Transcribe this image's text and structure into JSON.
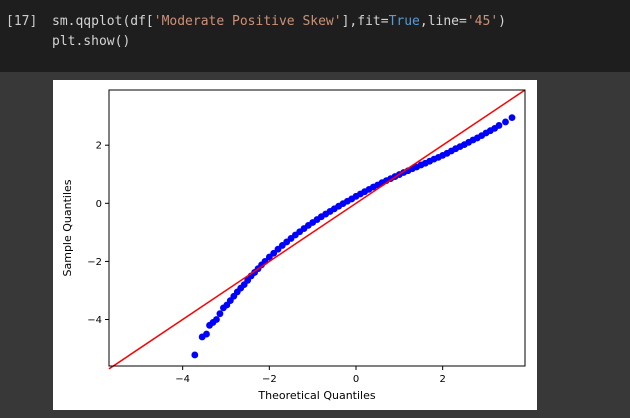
{
  "cell": {
    "prompt": "[17]",
    "code_line1_parts": [
      "sm.qqplot(df[",
      "'Moderate Positive Skew'",
      "],fit=",
      "True",
      ",line=",
      "'45'",
      ")"
    ],
    "code_line2": "plt.show()"
  },
  "colors": {
    "code_bg": "#1e1e1e",
    "output_bg": "#383838",
    "string": "#ce9178",
    "keyword": "#569cd6",
    "points": "#0000ff",
    "reference_line": "#ff0000"
  },
  "chart_data": {
    "type": "scatter",
    "title": "",
    "xlabel": "Theoretical Quantiles",
    "ylabel": "Sample Quantiles",
    "xlim": [
      -5.7,
      3.9
    ],
    "ylim": [
      -5.6,
      3.9
    ],
    "xticks": [
      -4,
      -2,
      0,
      2
    ],
    "yticks": [
      -4,
      -2,
      0,
      2
    ],
    "xtick_labels": [
      "−4",
      "−2",
      "0",
      "2"
    ],
    "ytick_labels": [
      "−4",
      "−2",
      "0",
      "2"
    ],
    "grid": false,
    "legend": "none",
    "reference_line": {
      "type": "45-degree",
      "points": [
        [
          -5.7,
          -5.7
        ],
        [
          3.9,
          3.9
        ]
      ]
    },
    "series": [
      {
        "x": [
          -3.72,
          -3.55,
          -3.45,
          -3.38,
          -3.3,
          -3.22,
          -3.14,
          -3.06,
          -2.98,
          -2.9,
          -2.82,
          -2.74,
          -2.66,
          -2.58,
          -2.5,
          -2.42,
          -2.34,
          -2.26,
          -2.18,
          -2.1,
          -2.0,
          -1.9,
          -1.8,
          -1.7,
          -1.6,
          -1.5,
          -1.4,
          -1.3,
          -1.2,
          -1.1,
          -1.0,
          -0.9,
          -0.8,
          -0.7,
          -0.6,
          -0.5,
          -0.4,
          -0.3,
          -0.2,
          -0.1,
          0.0,
          0.1,
          0.2,
          0.3,
          0.4,
          0.5,
          0.6,
          0.7,
          0.8,
          0.9,
          1.0,
          1.1,
          1.2,
          1.3,
          1.4,
          1.5,
          1.6,
          1.7,
          1.8,
          1.9,
          2.0,
          2.1,
          2.2,
          2.3,
          2.4,
          2.5,
          2.6,
          2.7,
          2.8,
          2.9,
          3.0,
          3.1,
          3.2,
          3.3,
          3.45,
          3.6
        ],
        "y": [
          -5.22,
          -4.6,
          -4.5,
          -4.2,
          -4.1,
          -4.0,
          -3.8,
          -3.6,
          -3.5,
          -3.35,
          -3.2,
          -3.05,
          -2.92,
          -2.8,
          -2.65,
          -2.5,
          -2.38,
          -2.25,
          -2.12,
          -2.0,
          -1.85,
          -1.72,
          -1.58,
          -1.45,
          -1.33,
          -1.21,
          -1.09,
          -0.98,
          -0.87,
          -0.76,
          -0.66,
          -0.56,
          -0.46,
          -0.37,
          -0.28,
          -0.19,
          -0.1,
          -0.01,
          0.07,
          0.15,
          0.24,
          0.32,
          0.4,
          0.48,
          0.56,
          0.63,
          0.71,
          0.78,
          0.85,
          0.92,
          0.99,
          1.06,
          1.12,
          1.19,
          1.25,
          1.32,
          1.38,
          1.45,
          1.52,
          1.58,
          1.65,
          1.72,
          1.8,
          1.88,
          1.95,
          2.02,
          2.1,
          2.18,
          2.25,
          2.33,
          2.42,
          2.5,
          2.58,
          2.68,
          2.8,
          2.95
        ]
      }
    ]
  }
}
